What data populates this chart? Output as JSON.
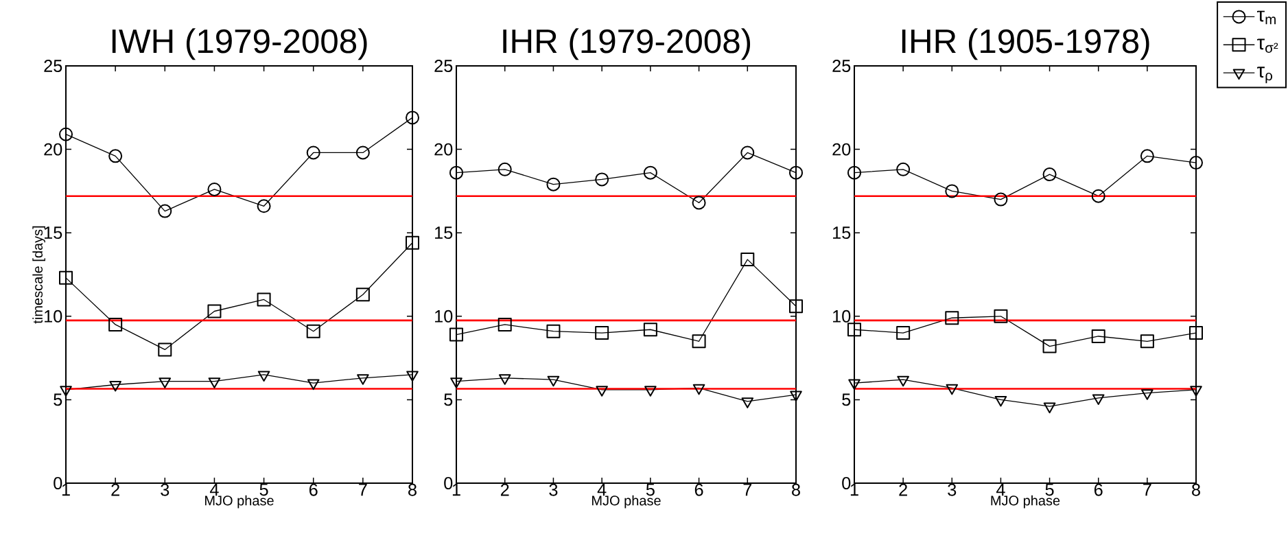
{
  "chart_data": [
    {
      "type": "line",
      "title": "IWH (1979-2008)",
      "xlabel": "MJO phase",
      "ylabel": "timescale [days]",
      "x": [
        1,
        2,
        3,
        4,
        5,
        6,
        7,
        8
      ],
      "xlim": [
        1,
        8
      ],
      "xticks": [
        1,
        2,
        3,
        4,
        5,
        6,
        7,
        8
      ],
      "ylim": [
        0,
        25
      ],
      "yticks": [
        0,
        5,
        10,
        15,
        20,
        25
      ],
      "grid": false,
      "series": [
        {
          "color": "#000000",
          "marker": "circle",
          "values": [
            20.9,
            19.6,
            16.3,
            17.6,
            16.6,
            19.8,
            19.8,
            21.9
          ]
        },
        {
          "color": "#000000",
          "marker": "square",
          "values": [
            12.3,
            9.5,
            8.0,
            10.3,
            11.0,
            9.1,
            11.3,
            14.4
          ]
        },
        {
          "color": "#000000",
          "marker": "triangle",
          "values": [
            5.6,
            5.9,
            6.1,
            6.1,
            6.5,
            6.0,
            6.3,
            6.5
          ]
        }
      ],
      "ref_lines": [
        {
          "axis": "y",
          "value": 17.2,
          "color": "#ff0000"
        },
        {
          "axis": "y",
          "value": 9.75,
          "color": "#ff0000"
        },
        {
          "axis": "y",
          "value": 5.65,
          "color": "#ff0000"
        }
      ]
    },
    {
      "type": "line",
      "title": "IHR (1979-2008)",
      "xlabel": "MJO phase",
      "x": [
        1,
        2,
        3,
        4,
        5,
        6,
        7,
        8
      ],
      "xlim": [
        1,
        8
      ],
      "xticks": [
        1,
        2,
        3,
        4,
        5,
        6,
        7,
        8
      ],
      "ylim": [
        0,
        25
      ],
      "yticks": [
        0,
        5,
        10,
        15,
        20,
        25
      ],
      "grid": false,
      "series": [
        {
          "color": "#000000",
          "marker": "circle",
          "values": [
            18.6,
            18.8,
            17.9,
            18.2,
            18.6,
            16.8,
            19.8,
            18.6
          ]
        },
        {
          "color": "#000000",
          "marker": "square",
          "values": [
            8.9,
            9.5,
            9.1,
            9.0,
            9.2,
            8.5,
            13.4,
            10.6
          ]
        },
        {
          "color": "#000000",
          "marker": "triangle",
          "values": [
            6.1,
            6.3,
            6.2,
            5.6,
            5.6,
            5.7,
            4.9,
            5.3
          ]
        }
      ],
      "ref_lines": [
        {
          "axis": "y",
          "value": 17.2,
          "color": "#ff0000"
        },
        {
          "axis": "y",
          "value": 9.75,
          "color": "#ff0000"
        },
        {
          "axis": "y",
          "value": 5.65,
          "color": "#ff0000"
        }
      ]
    },
    {
      "type": "line",
      "title": "IHR (1905-1978)",
      "xlabel": "MJO phase",
      "x": [
        1,
        2,
        3,
        4,
        5,
        6,
        7,
        8
      ],
      "xlim": [
        1,
        8
      ],
      "xticks": [
        1,
        2,
        3,
        4,
        5,
        6,
        7,
        8
      ],
      "ylim": [
        0,
        25
      ],
      "yticks": [
        0,
        5,
        10,
        15,
        20,
        25
      ],
      "grid": false,
      "legend": "top right",
      "series": [
        {
          "name": "τ$_{m}$",
          "color": "#000000",
          "marker": "circle",
          "values": [
            18.6,
            18.8,
            17.5,
            17.0,
            18.5,
            17.2,
            19.6,
            19.2
          ]
        },
        {
          "name": "τ$_{σ²}$",
          "color": "#000000",
          "marker": "square",
          "values": [
            9.2,
            9.0,
            9.9,
            10.0,
            8.2,
            8.8,
            8.5,
            9.0
          ]
        },
        {
          "name": "τ$_{ρ}$",
          "color": "#000000",
          "marker": "triangle",
          "values": [
            6.0,
            6.2,
            5.7,
            5.0,
            4.6,
            5.1,
            5.4,
            5.6
          ]
        }
      ],
      "ref_lines": [
        {
          "axis": "y",
          "value": 17.2,
          "color": "#ff0000"
        },
        {
          "axis": "y",
          "value": 9.75,
          "color": "#ff0000"
        },
        {
          "axis": "y",
          "value": 5.65,
          "color": "#ff0000"
        }
      ]
    }
  ]
}
